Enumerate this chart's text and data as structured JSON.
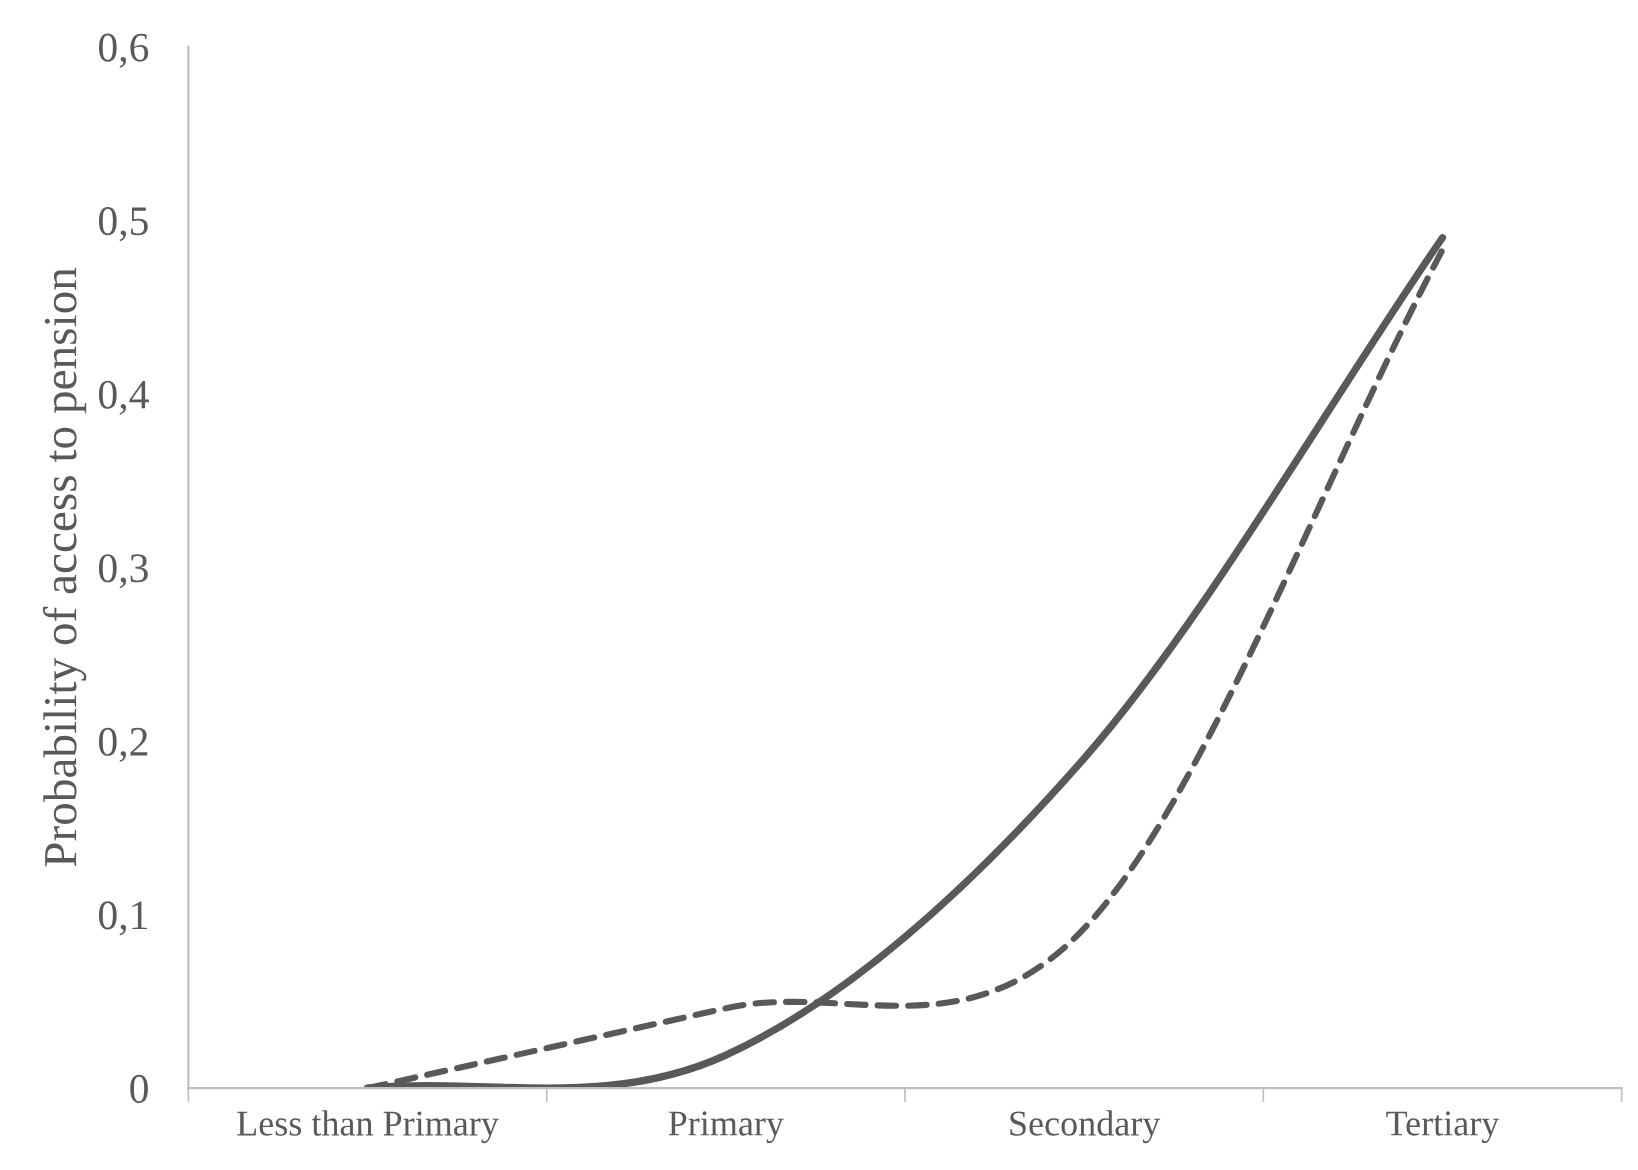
{
  "chart_data": {
    "type": "line",
    "ylabel": "Probability of access to pension",
    "categories": [
      "Less than Primary",
      "Primary",
      "Secondary",
      "Tertiary"
    ],
    "series": [
      {
        "color": "#595959",
        "line_style": "solid",
        "values": [
          0,
          0.019,
          0.19,
          0.49
        ]
      },
      {
        "color": "#595959",
        "line_style": "dashed",
        "values": [
          0,
          0.046,
          0.092,
          0.483
        ]
      }
    ],
    "ylim": [
      0,
      0.6
    ],
    "yticks": [
      0,
      {
        "value": 0.1,
        "label": "0,1"
      },
      {
        "value": 0.2,
        "label": "0,2"
      },
      {
        "value": 0.3,
        "label": "0,3"
      },
      {
        "value": 0.4,
        "label": "0,4"
      },
      {
        "value": 0.5,
        "label": "0,5"
      },
      {
        "value": 0.6,
        "label": "0,6"
      }
    ],
    "grid": false,
    "legend": false,
    "marker": "none"
  }
}
